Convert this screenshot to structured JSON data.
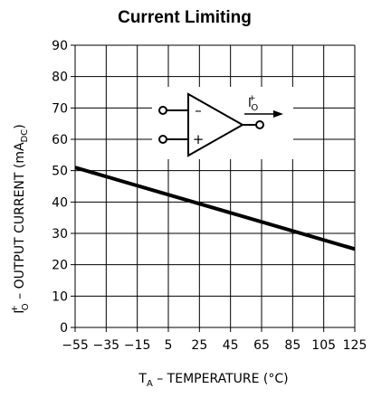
{
  "chart_data": {
    "type": "line",
    "title": "Current Limiting",
    "xlabel": {
      "main": "T",
      "subscript": "A",
      "rest": " – TEMPERATURE (°C)"
    },
    "ylabel": {
      "main": "I",
      "superscript": "+",
      "subscript": "O",
      "rest": " – OUTPUT CURRENT (mA",
      "unit_subscript": "DC",
      "close": ")"
    },
    "x_ticks": [
      "−55",
      "−35",
      "−15",
      "5",
      "25",
      "45",
      "65",
      "85",
      "105",
      "125"
    ],
    "y_ticks": [
      "0",
      "10",
      "20",
      "30",
      "40",
      "50",
      "60",
      "70",
      "80",
      "90"
    ],
    "xlim": [
      -55,
      125
    ],
    "ylim": [
      0,
      90
    ],
    "grid": true,
    "series": [
      {
        "x": [
          -55,
          125
        ],
        "y": [
          51,
          25
        ]
      }
    ],
    "inset": {
      "type": "op-amp-symbol",
      "inverting_label": "–",
      "noninverting_label": "+",
      "output_label": {
        "main": "I",
        "superscript": "+",
        "subscript": "O"
      }
    }
  }
}
